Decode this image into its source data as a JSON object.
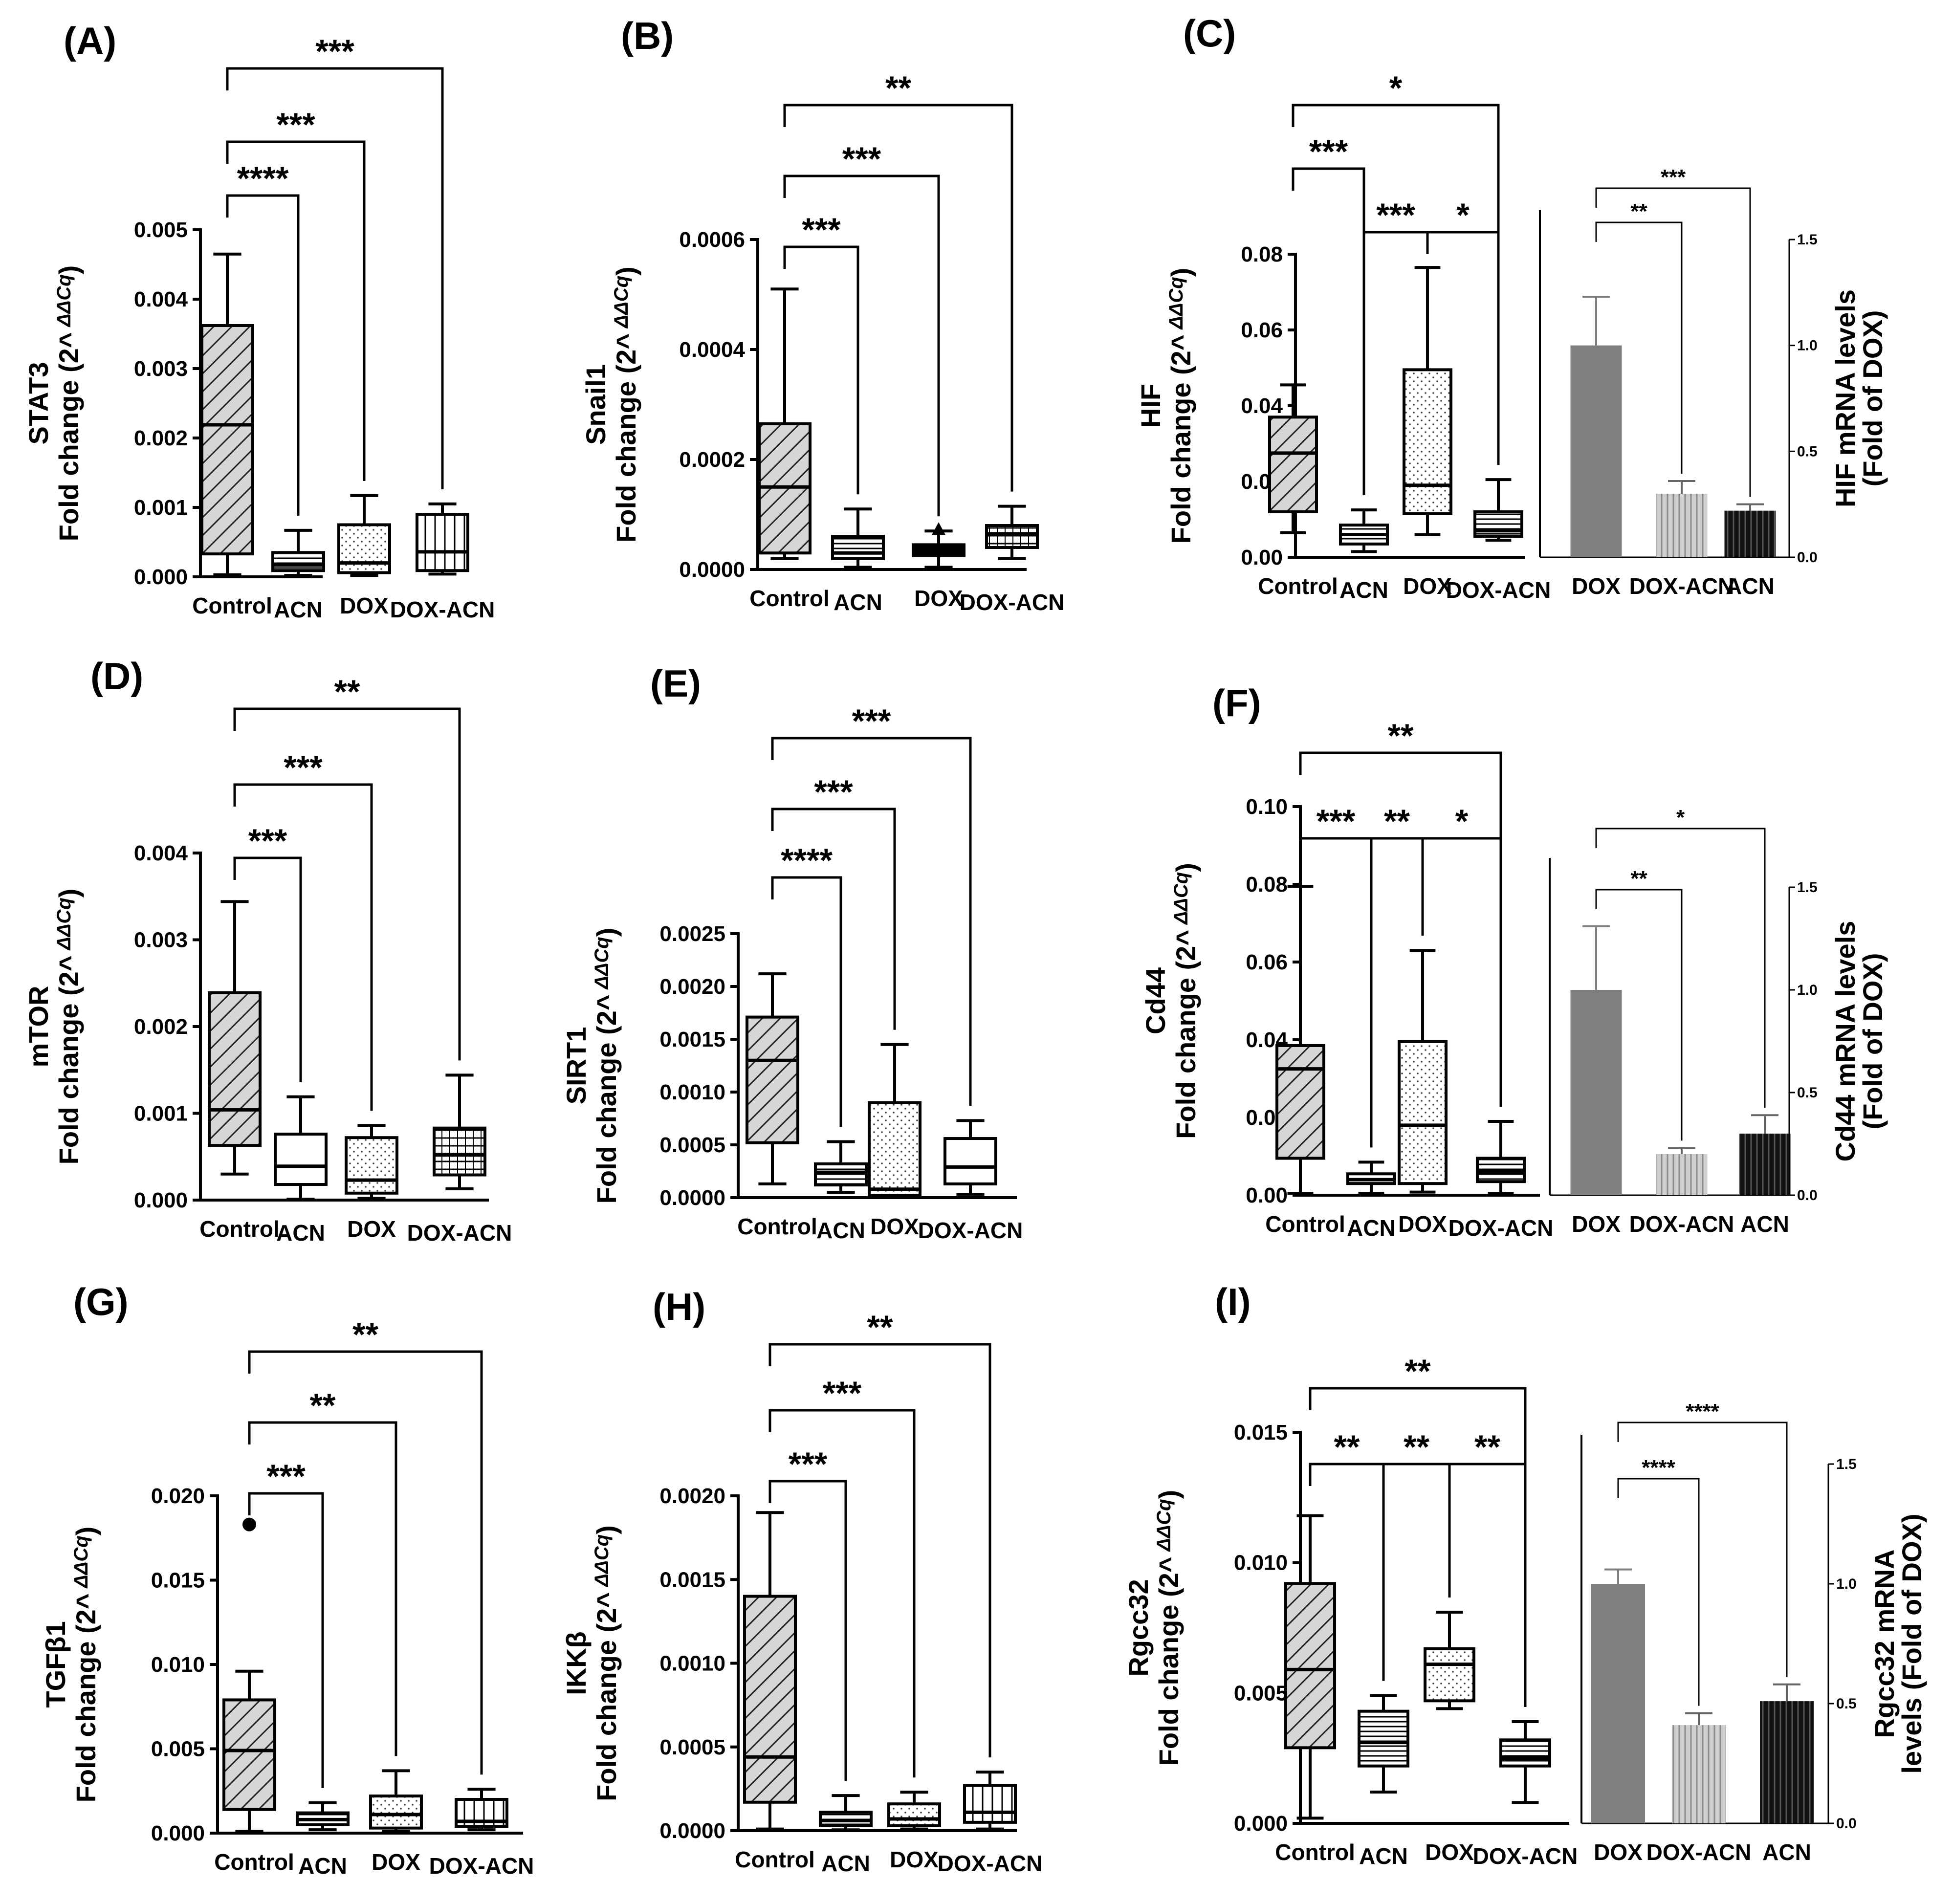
{
  "chart_data": [
    {
      "panel": "(A)",
      "type": "box",
      "gene": "STAT3",
      "ylabel": "Fold change (2^ ΔΔCq)",
      "ylim": [
        0,
        0.005
      ],
      "yticks": [
        "0.000",
        "0.001",
        "0.002",
        "0.003",
        "0.004",
        "0.005"
      ],
      "categories": [
        "Control",
        "ACN",
        "DOX",
        "DOX-ACN"
      ],
      "boxes": [
        {
          "min": 3e-05,
          "q1": 0.00033,
          "median": 0.00219,
          "q3": 0.00362,
          "max": 0.00465
        },
        {
          "min": 2e-05,
          "q1": 9e-05,
          "median": 0.00017,
          "q3": 0.00035,
          "max": 0.00067
        },
        {
          "min": 2e-05,
          "q1": 6e-05,
          "median": 0.0002,
          "q3": 0.00075,
          "max": 0.00117
        },
        {
          "min": 4e-05,
          "q1": 9e-05,
          "median": 0.00036,
          "q3": 0.0009,
          "max": 0.00105
        }
      ],
      "fills": [
        "hatch",
        "dense",
        "dots",
        "vlines"
      ],
      "comparisons": [
        {
          "from": 0,
          "to": 1,
          "label": "****"
        },
        {
          "from": 0,
          "to": 2,
          "label": "***"
        },
        {
          "from": 0,
          "to": 3,
          "label": "***"
        }
      ]
    },
    {
      "panel": "(B)",
      "type": "box",
      "gene": "Snail1",
      "ylabel": "Fold change (2^ ΔΔCq)",
      "ylim": [
        0,
        0.0006
      ],
      "yticks": [
        "0.0000",
        "0.0002",
        "0.0004",
        "0.0006"
      ],
      "categories": [
        "Control",
        "ACN",
        "DOX",
        "DOX-ACN"
      ],
      "boxes": [
        {
          "min": 2e-05,
          "q1": 3e-05,
          "median": 0.00015,
          "q3": 0.000265,
          "max": 0.00051
        },
        {
          "min": 4e-06,
          "q1": 2e-05,
          "median": 3e-05,
          "q3": 6e-05,
          "max": 0.00011
        },
        {
          "min": 4e-06,
          "q1": 2.5e-05,
          "median": 3.5e-05,
          "q3": 4.5e-05,
          "max": 7e-05
        },
        {
          "min": 2e-05,
          "q1": 4e-05,
          "median": 6.5e-05,
          "q3": 8e-05,
          "max": 0.000115
        }
      ],
      "fills": [
        "hatch",
        "dense",
        "solid",
        "hlines"
      ],
      "comparisons": [
        {
          "from": 0,
          "to": 1,
          "label": "***"
        },
        {
          "from": 0,
          "to": 2,
          "label": "***"
        },
        {
          "from": 0,
          "to": 3,
          "label": "**"
        }
      ]
    },
    {
      "panel": "(C)",
      "type": "box+bar",
      "gene": "HIF",
      "ylabel": "Fold change (2^ ΔΔCq)",
      "ylim": [
        0,
        0.08
      ],
      "yticks": [
        "0.00",
        "0.02",
        "0.04",
        "0.06",
        "0.08"
      ],
      "categories": [
        "Control",
        "ACN",
        "DOX",
        "DOX-ACN"
      ],
      "boxes": [
        {
          "min": 0.0065,
          "q1": 0.012,
          "median": 0.0275,
          "q3": 0.037,
          "max": 0.0455
        },
        {
          "min": 0.0015,
          "q1": 0.0035,
          "median": 0.006,
          "q3": 0.0085,
          "max": 0.0125
        },
        {
          "min": 0.006,
          "q1": 0.0115,
          "median": 0.019,
          "q3": 0.0495,
          "max": 0.0765
        },
        {
          "min": 0.0045,
          "q1": 0.0055,
          "median": 0.007,
          "q3": 0.012,
          "max": 0.0205
        }
      ],
      "fills": [
        "hatch",
        "dense",
        "dots",
        "dense"
      ],
      "comparisons": [
        {
          "from": 0,
          "to": 1,
          "label": "***"
        },
        {
          "from": 1,
          "to": 2,
          "label": "***"
        },
        {
          "from": 2,
          "to": 3,
          "label": "*"
        },
        {
          "from": 0,
          "to": 3,
          "label": "*"
        }
      ],
      "bar": {
        "ylabel": "HIF mRNA levels",
        "ylabel2": "(Fold of DOX)",
        "ylim": [
          0,
          1.5
        ],
        "yticks": [
          "0.0",
          "0.5",
          "1.0",
          "1.5"
        ],
        "categories": [
          "DOX",
          "DOX-ACN",
          "ACN"
        ],
        "values": [
          1.0,
          0.3,
          0.22
        ],
        "errors": [
          0.23,
          0.06,
          0.03
        ],
        "colors": [
          "#7f7f7f",
          "#b8b8b8",
          "#1a1a1a"
        ],
        "comparisons": [
          {
            "from": 0,
            "to": 1,
            "label": "**"
          },
          {
            "from": 0,
            "to": 2,
            "label": "***"
          }
        ]
      }
    },
    {
      "panel": "(D)",
      "type": "box",
      "gene": "mTOR",
      "ylabel": "Fold change (2^ ΔΔCq)",
      "ylim": [
        0,
        0.004
      ],
      "yticks": [
        "0.000",
        "0.001",
        "0.002",
        "0.003",
        "0.004"
      ],
      "categories": [
        "Control",
        "ACN",
        "DOX",
        "DOX-ACN"
      ],
      "boxes": [
        {
          "min": 0.0003,
          "q1": 0.00063,
          "median": 0.00104,
          "q3": 0.00239,
          "max": 0.00344
        },
        {
          "min": 1e-05,
          "q1": 0.00018,
          "median": 0.00039,
          "q3": 0.00076,
          "max": 0.00119
        },
        {
          "min": 2e-05,
          "q1": 8e-05,
          "median": 0.00023,
          "q3": 0.00072,
          "max": 0.00086
        },
        {
          "min": 0.00013,
          "q1": 0.00029,
          "median": 0.00052,
          "q3": 0.00083,
          "max": 0.00144
        }
      ],
      "fills": [
        "hatch",
        "none",
        "dots",
        "hlines"
      ],
      "comparisons": [
        {
          "from": 0,
          "to": 1,
          "label": "***"
        },
        {
          "from": 0,
          "to": 2,
          "label": "***"
        },
        {
          "from": 0,
          "to": 3,
          "label": "**"
        }
      ]
    },
    {
      "panel": "(E)",
      "type": "box",
      "gene": "SIRT1",
      "ylabel": "Fold change (2^ ΔΔCq)",
      "ylim": [
        0,
        0.0025
      ],
      "yticks": [
        "0.0000",
        "0.0005",
        "0.0010",
        "0.0015",
        "0.0020",
        "0.0025"
      ],
      "categories": [
        "Control",
        "ACN",
        "DOX",
        "DOX-ACN"
      ],
      "boxes": [
        {
          "min": 0.00013,
          "q1": 0.00052,
          "median": 0.0013,
          "q3": 0.00171,
          "max": 0.00212
        },
        {
          "min": 5e-05,
          "q1": 0.00012,
          "median": 0.00024,
          "q3": 0.00032,
          "max": 0.00053
        },
        {
          "min": 5e-06,
          "q1": 2e-05,
          "median": 8e-05,
          "q3": 0.0009,
          "max": 0.00145
        },
        {
          "min": 3e-05,
          "q1": 0.00013,
          "median": 0.00029,
          "q3": 0.00056,
          "max": 0.00073
        }
      ],
      "fills": [
        "hatch",
        "dense",
        "dots",
        "none"
      ],
      "comparisons": [
        {
          "from": 0,
          "to": 1,
          "label": "****"
        },
        {
          "from": 0,
          "to": 2,
          "label": "***"
        },
        {
          "from": 0,
          "to": 3,
          "label": "***"
        }
      ]
    },
    {
      "panel": "(F)",
      "type": "box+bar",
      "gene": "Cd44",
      "ylabel": "Fold change (2^ ΔΔCq)",
      "ylim": [
        0,
        0.1
      ],
      "yticks": [
        "0.00",
        "0.02",
        "0.04",
        "0.06",
        "0.08",
        "0.10"
      ],
      "categories": [
        "Control",
        "ACN",
        "DOX",
        "DOX-ACN"
      ],
      "boxes": [
        {
          "min": 0.0005,
          "q1": 0.0095,
          "median": 0.0325,
          "q3": 0.0385,
          "max": 0.0795
        },
        {
          "min": 0.0005,
          "q1": 0.003,
          "median": 0.004,
          "q3": 0.0055,
          "max": 0.0085
        },
        {
          "min": 0.0008,
          "q1": 0.003,
          "median": 0.018,
          "q3": 0.0395,
          "max": 0.063
        },
        {
          "min": 0.0005,
          "q1": 0.0035,
          "median": 0.006,
          "q3": 0.0095,
          "max": 0.019
        }
      ],
      "fills": [
        "hatch",
        "dense",
        "dots",
        "dense"
      ],
      "comparisons": [
        {
          "from": 0,
          "to": 1,
          "label": "***"
        },
        {
          "from": 1,
          "to": 2,
          "label": "**"
        },
        {
          "from": 2,
          "to": 3,
          "label": "*"
        },
        {
          "from": 0,
          "to": 3,
          "label": "**"
        }
      ],
      "bar": {
        "ylabel": "Cd44 mRNA levels",
        "ylabel2": "(Fold of DOX)",
        "ylim": [
          0,
          1.5
        ],
        "yticks": [
          "0.0",
          "0.5",
          "1.0",
          "1.5"
        ],
        "categories": [
          "DOX",
          "DOX-ACN",
          "ACN"
        ],
        "values": [
          1.0,
          0.2,
          0.3
        ],
        "errors": [
          0.31,
          0.03,
          0.09
        ],
        "colors": [
          "#7f7f7f",
          "#b8b8b8",
          "#1a1a1a"
        ],
        "comparisons": [
          {
            "from": 0,
            "to": 1,
            "label": "**"
          },
          {
            "from": 0,
            "to": 2,
            "label": "*"
          }
        ]
      }
    },
    {
      "panel": "(G)",
      "type": "box",
      "gene": "TGFβ1",
      "ylabel": "Fold change (2^ ΔΔCq)",
      "ylim": [
        0,
        0.02
      ],
      "yticks": [
        "0.000",
        "0.005",
        "0.010",
        "0.015",
        "0.020"
      ],
      "categories": [
        "Control",
        "ACN",
        "DOX",
        "DOX-ACN"
      ],
      "boxes": [
        {
          "min": 0.0001,
          "q1": 0.0014,
          "median": 0.0049,
          "q3": 0.0079,
          "max": 0.0096,
          "outlier": 0.0183
        },
        {
          "min": 0.0002,
          "q1": 0.0005,
          "median": 0.0008,
          "q3": 0.0012,
          "max": 0.0018
        },
        {
          "min": 0.0001,
          "q1": 0.0003,
          "median": 0.0011,
          "q3": 0.0022,
          "max": 0.0037
        },
        {
          "min": 0.0002,
          "q1": 0.0004,
          "median": 0.0007,
          "q3": 0.002,
          "max": 0.0026
        }
      ],
      "fills": [
        "hatch",
        "dense",
        "dots",
        "vlines"
      ],
      "comparisons": [
        {
          "from": 0,
          "to": 1,
          "label": "***"
        },
        {
          "from": 0,
          "to": 2,
          "label": "**"
        },
        {
          "from": 0,
          "to": 3,
          "label": "**"
        }
      ]
    },
    {
      "panel": "(H)",
      "type": "box",
      "gene": "IKKβ",
      "ylabel": "Fold change (2^ ΔΔCq)",
      "ylim": [
        0,
        0.002
      ],
      "yticks": [
        "0.0000",
        "0.0005",
        "0.0010",
        "0.0015",
        "0.0020"
      ],
      "categories": [
        "Control",
        "ACN",
        "DOX",
        "DOX-ACN"
      ],
      "boxes": [
        {
          "min": 1e-05,
          "q1": 0.00017,
          "median": 0.00044,
          "q3": 0.0014,
          "max": 0.0019
        },
        {
          "min": 5e-06,
          "q1": 3e-05,
          "median": 6e-05,
          "q3": 0.00011,
          "max": 0.00021
        },
        {
          "min": 1e-05,
          "q1": 3e-05,
          "median": 7e-05,
          "q3": 0.00016,
          "max": 0.00023
        },
        {
          "min": 1e-05,
          "q1": 5e-05,
          "median": 0.00011,
          "q3": 0.00027,
          "max": 0.00035
        }
      ],
      "fills": [
        "hatch",
        "dense",
        "dots",
        "vlines"
      ],
      "comparisons": [
        {
          "from": 0,
          "to": 1,
          "label": "***"
        },
        {
          "from": 0,
          "to": 2,
          "label": "***"
        },
        {
          "from": 0,
          "to": 3,
          "label": "**"
        }
      ]
    },
    {
      "panel": "(I)",
      "type": "box+bar",
      "gene": "Rgcc32",
      "ylabel": "Fold change (2^ ΔΔCq)",
      "ylim": [
        0,
        0.015
      ],
      "yticks": [
        "0.000",
        "0.005",
        "0.010",
        "0.015"
      ],
      "categories": [
        "Control",
        "ACN",
        "DOX",
        "DOX-ACN"
      ],
      "boxes": [
        {
          "min": 0.0002,
          "q1": 0.0029,
          "median": 0.0059,
          "q3": 0.0092,
          "max": 0.0118
        },
        {
          "min": 0.0012,
          "q1": 0.0022,
          "median": 0.0031,
          "q3": 0.0043,
          "max": 0.0049
        },
        {
          "min": 0.0044,
          "q1": 0.0047,
          "median": 0.0061,
          "q3": 0.0067,
          "max": 0.0081
        },
        {
          "min": 0.0008,
          "q1": 0.0022,
          "median": 0.0025,
          "q3": 0.0032,
          "max": 0.0039
        }
      ],
      "fills": [
        "hatch",
        "dense",
        "dots",
        "dense"
      ],
      "comparisons": [
        {
          "from": 0,
          "to": 1,
          "label": "**"
        },
        {
          "from": 1,
          "to": 2,
          "label": "**"
        },
        {
          "from": 2,
          "to": 3,
          "label": "**"
        },
        {
          "from": 0,
          "to": 3,
          "label": "**"
        }
      ],
      "bar": {
        "ylabel": "Rgcc32 mRNA",
        "ylabel2": "levels (Fold of DOX)",
        "ylim": [
          0,
          1.5
        ],
        "yticks": [
          "0.0",
          "0.5",
          "1.0",
          "1.5"
        ],
        "categories": [
          "DOX",
          "DOX-ACN",
          "ACN"
        ],
        "values": [
          1.0,
          0.41,
          0.51
        ],
        "errors": [
          0.06,
          0.05,
          0.07
        ],
        "colors": [
          "#7f7f7f",
          "#b8b8b8",
          "#1a1a1a"
        ],
        "comparisons": [
          {
            "from": 0,
            "to": 1,
            "label": "****"
          },
          {
            "from": 0,
            "to": 2,
            "label": "****"
          }
        ]
      }
    }
  ]
}
